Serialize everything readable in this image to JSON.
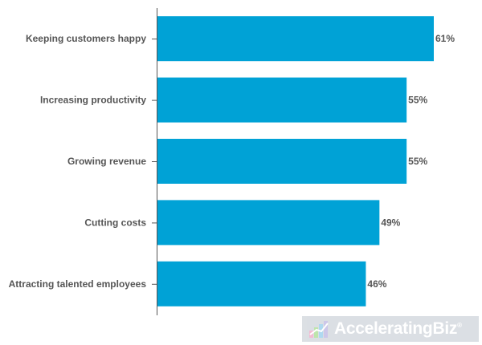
{
  "chart_data": {
    "type": "bar",
    "orientation": "horizontal",
    "categories": [
      "Keeping customers happy",
      "Increasing productivity",
      "Growing revenue",
      "Cutting costs",
      "Attracting talented employees"
    ],
    "values": [
      61,
      55,
      55,
      49,
      46
    ],
    "value_labels": [
      "61%",
      "55%",
      "55%",
      "49%",
      "46%"
    ],
    "xlim": [
      0,
      61
    ],
    "grid": false,
    "bar_color": "#00a2d6"
  },
  "watermark": {
    "text": "AcceleratingBiz",
    "reg_mark": "®"
  }
}
